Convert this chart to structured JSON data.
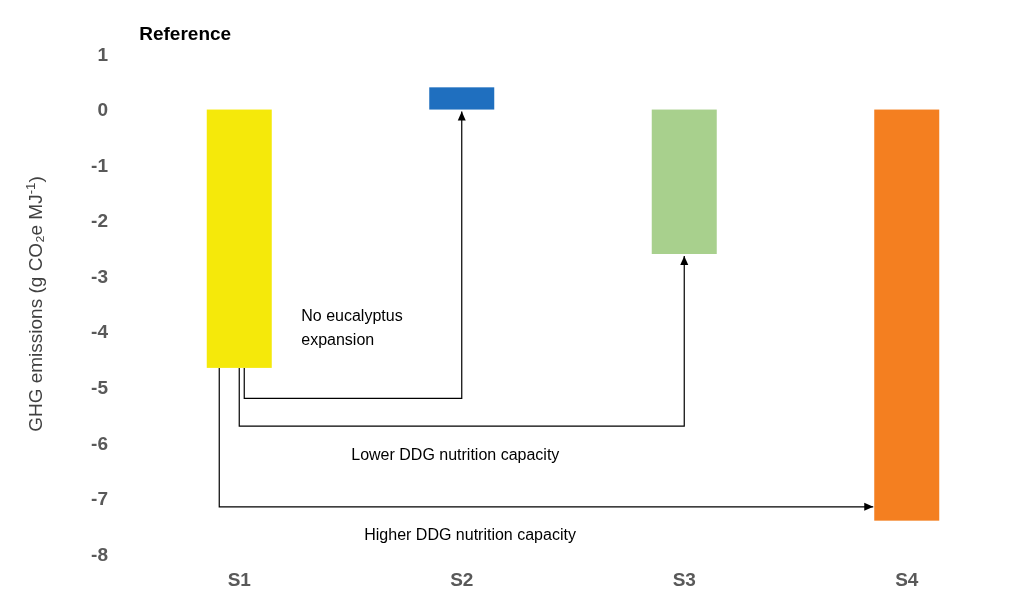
{
  "chart_data": {
    "type": "bar",
    "ylabel": "GHG emissions (g CO₂e MJ$^{-1}$)",
    "categories": [
      "S1",
      "S2",
      "S3",
      "S4"
    ],
    "values": [
      -4.65,
      0.4,
      -2.6,
      -7.4
    ],
    "colors": [
      "#f5e90a",
      "#1f6fbf",
      "#a8d08d",
      "#f47f20"
    ],
    "ylim": [
      -8,
      1
    ],
    "yticks": [
      -8,
      -7,
      -6,
      -5,
      -4,
      -3,
      -2,
      -1,
      0,
      1
    ],
    "grid": false,
    "annotations": [
      "Reference",
      "No eucalyptus expansion",
      "Lower DDG nutrition capacity",
      "Higher DDG nutrition capacity"
    ]
  }
}
